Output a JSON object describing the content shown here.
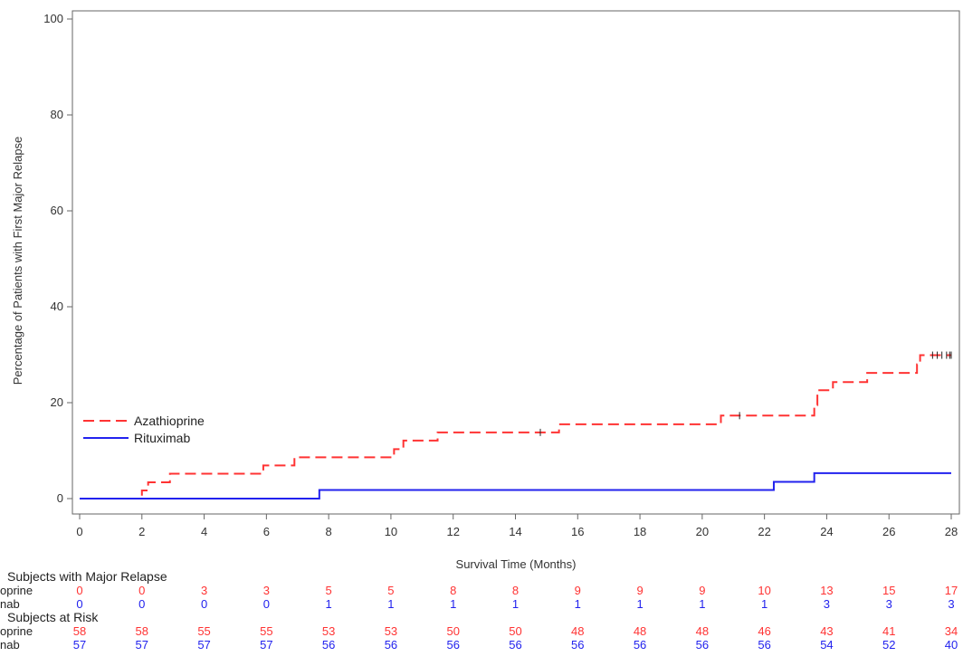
{
  "chart_data": {
    "type": "line",
    "subtype": "kaplan-meier-cumulative-incidence",
    "xlabel": "Survival Time (Months)",
    "ylabel": "Percentage of Patients with First Major Relapse",
    "xlim": [
      0,
      28
    ],
    "ylim": [
      0,
      100
    ],
    "xticks": [
      0,
      2,
      4,
      6,
      8,
      10,
      12,
      14,
      16,
      18,
      20,
      22,
      24,
      26,
      28
    ],
    "yticks": [
      0,
      20,
      40,
      60,
      80,
      100
    ],
    "grid": false,
    "legend_position": "lower-left",
    "series": [
      {
        "name": "Azathioprine",
        "color": "#ff3333",
        "style": "dashed",
        "steps": [
          [
            0,
            0
          ],
          [
            2.0,
            1.7
          ],
          [
            2.2,
            3.4
          ],
          [
            2.9,
            5.2
          ],
          [
            5.9,
            6.9
          ],
          [
            6.9,
            8.6
          ],
          [
            10.1,
            10.3
          ],
          [
            10.4,
            12.1
          ],
          [
            11.5,
            13.8
          ],
          [
            15.4,
            15.5
          ],
          [
            20.6,
            17.3
          ],
          [
            23.6,
            19.5
          ],
          [
            23.7,
            22.6
          ],
          [
            24.2,
            24.3
          ],
          [
            25.3,
            26.2
          ],
          [
            26.9,
            28.0
          ],
          [
            27.0,
            29.9
          ],
          [
            28.0,
            29.9
          ]
        ],
        "censor_marks": [
          [
            14.8,
            13.8
          ],
          [
            21.2,
            17.3
          ],
          [
            27.4,
            29.9
          ],
          [
            27.55,
            29.9
          ],
          [
            27.7,
            29.9
          ],
          [
            27.85,
            29.9
          ],
          [
            27.95,
            29.9
          ],
          [
            28.0,
            29.9
          ]
        ]
      },
      {
        "name": "Rituximab",
        "color": "#2222ee",
        "style": "solid",
        "steps": [
          [
            0,
            0
          ],
          [
            7.7,
            1.8
          ],
          [
            22.3,
            3.5
          ],
          [
            23.6,
            5.3
          ],
          [
            28.0,
            5.3
          ]
        ],
        "censor_marks": []
      }
    ],
    "risk_table": {
      "times": [
        0,
        2,
        4,
        6,
        8,
        10,
        12,
        14,
        16,
        18,
        20,
        22,
        24,
        26,
        28
      ],
      "sections": [
        {
          "header": "Subjects with Major Relapse",
          "rows": [
            {
              "label": "oprine",
              "color": "#ff3333",
              "values": [
                "0",
                "0",
                "3",
                "3",
                "5",
                "5",
                "8",
                "8",
                "9",
                "9",
                "9",
                "10",
                "13",
                "15",
                "17"
              ]
            },
            {
              "label": "nab",
              "color": "#2222ee",
              "values": [
                "0",
                "0",
                "0",
                "0",
                "1",
                "1",
                "1",
                "1",
                "1",
                "1",
                "1",
                "1",
                "3",
                "3",
                "3"
              ]
            }
          ]
        },
        {
          "header": "Subjects at Risk",
          "rows": [
            {
              "label": "oprine",
              "color": "#ff3333",
              "values": [
                "58",
                "58",
                "55",
                "55",
                "53",
                "53",
                "50",
                "50",
                "48",
                "48",
                "48",
                "46",
                "43",
                "41",
                "34"
              ]
            },
            {
              "label": "nab",
              "color": "#2222ee",
              "values": [
                "57",
                "57",
                "57",
                "57",
                "56",
                "56",
                "56",
                "56",
                "56",
                "56",
                "56",
                "56",
                "54",
                "52",
                "40"
              ]
            }
          ]
        }
      ]
    }
  }
}
